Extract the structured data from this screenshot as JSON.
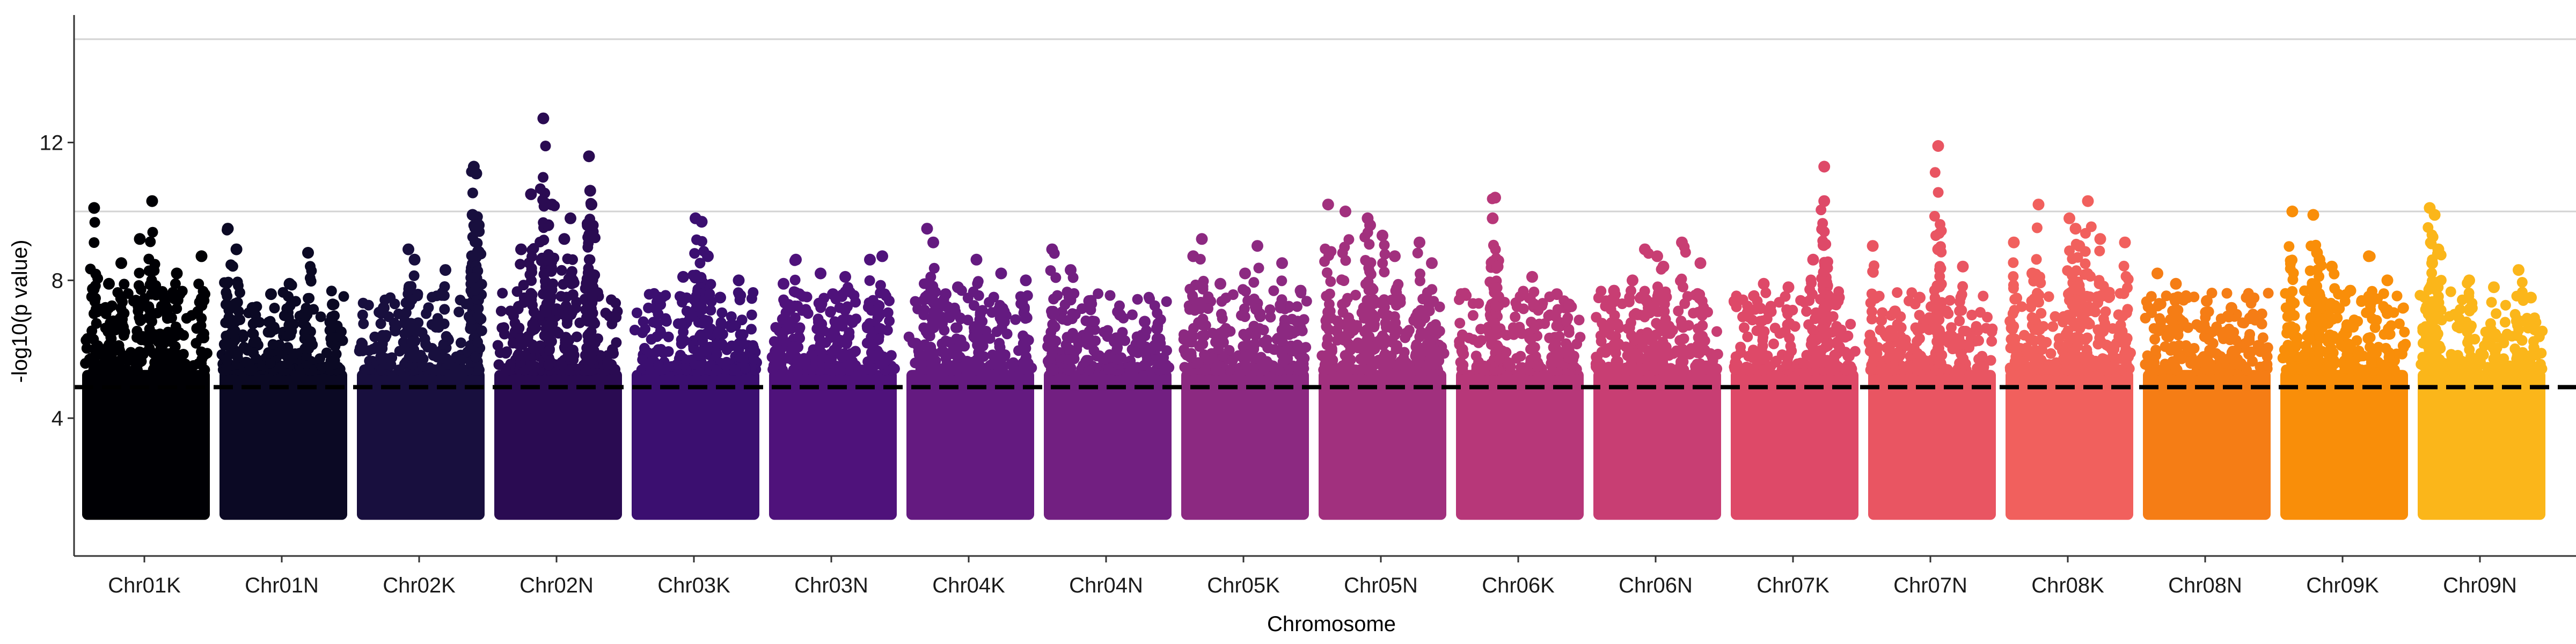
{
  "chart_data": {
    "type": "scatter",
    "title": "",
    "xlabel": "Chromosome",
    "ylabel": "-log10(p value)",
    "ylim": [
      0,
      15.7
    ],
    "y_ticks": [
      4,
      8,
      12
    ],
    "grid": "horizontal lines at y = 10 and y = 15",
    "reference_lines": {
      "grey_horizontal": [
        10,
        15
      ],
      "dashed_threshold": 4.9
    },
    "categories": [
      "Chr01K",
      "Chr01N",
      "Chr02K",
      "Chr02N",
      "Chr03K",
      "Chr03N",
      "Chr04K",
      "Chr04N",
      "Chr05K",
      "Chr05N",
      "Chr06K",
      "Chr06N",
      "Chr07K",
      "Chr07N",
      "Chr08K",
      "Chr08N",
      "Chr09K",
      "Chr09N"
    ],
    "colors": [
      "#000004",
      "#0b0924",
      "#180f3e",
      "#2a0b52",
      "#3b0f70",
      "#4f127b",
      "#641a80",
      "#721f81",
      "#8c2981",
      "#a1307e",
      "#b73779",
      "#c83e73",
      "#de4968",
      "#e95562",
      "#f1605d",
      "#f57d15",
      "#f98e09",
      "#fbb61a"
    ],
    "series": [
      {
        "name": "Chr01K",
        "peaks": [
          [
            0.08,
            10.1
          ],
          [
            0.55,
            10.3
          ],
          [
            0.45,
            9.2
          ],
          [
            0.3,
            8.5
          ],
          [
            0.95,
            8.7
          ],
          [
            0.75,
            8.2
          ],
          [
            0.2,
            7.9
          ],
          [
            0.65,
            7.5
          ]
        ]
      },
      {
        "name": "Chr01N",
        "peaks": [
          [
            0.05,
            9.5
          ],
          [
            0.12,
            8.9
          ],
          [
            0.4,
            7.6
          ],
          [
            0.7,
            8.8
          ],
          [
            0.55,
            7.9
          ],
          [
            0.9,
            7.3
          ],
          [
            0.25,
            7.2
          ]
        ]
      },
      {
        "name": "Chr02K",
        "peaks": [
          [
            0.4,
            8.9
          ],
          [
            0.45,
            8.6
          ],
          [
            0.93,
            11.3
          ],
          [
            0.95,
            11.1
          ],
          [
            0.92,
            9.9
          ],
          [
            0.97,
            9.6
          ],
          [
            0.7,
            8.3
          ],
          [
            0.2,
            7.2
          ]
        ]
      },
      {
        "name": "Chr02N",
        "peaks": [
          [
            0.38,
            12.7
          ],
          [
            0.75,
            11.6
          ],
          [
            0.76,
            10.6
          ],
          [
            0.28,
            10.5
          ],
          [
            0.45,
            10.2
          ],
          [
            0.6,
            9.8
          ],
          [
            0.77,
            10.2
          ],
          [
            0.42,
            9.6
          ],
          [
            0.2,
            8.9
          ],
          [
            0.55,
            9.2
          ]
        ]
      },
      {
        "name": "Chr03K",
        "peaks": [
          [
            0.5,
            9.8
          ],
          [
            0.55,
            9.7
          ],
          [
            0.6,
            8.7
          ],
          [
            0.4,
            8.1
          ],
          [
            0.85,
            8.0
          ],
          [
            0.2,
            7.5
          ],
          [
            0.7,
            7.5
          ]
        ]
      },
      {
        "name": "Chr03N",
        "peaks": [
          [
            0.2,
            8.6
          ],
          [
            0.4,
            8.2
          ],
          [
            0.6,
            8.1
          ],
          [
            0.8,
            8.6
          ],
          [
            0.9,
            8.7
          ],
          [
            0.1,
            7.9
          ],
          [
            0.5,
            7.6
          ]
        ]
      },
      {
        "name": "Chr04K",
        "peaks": [
          [
            0.15,
            9.5
          ],
          [
            0.2,
            9.1
          ],
          [
            0.55,
            8.6
          ],
          [
            0.75,
            8.2
          ],
          [
            0.95,
            8.0
          ],
          [
            0.4,
            7.8
          ],
          [
            0.3,
            7.6
          ]
        ]
      },
      {
        "name": "Chr04N",
        "peaks": [
          [
            0.05,
            8.9
          ],
          [
            0.2,
            8.3
          ],
          [
            0.35,
            7.4
          ],
          [
            0.6,
            7.0
          ],
          [
            0.8,
            6.8
          ],
          [
            0.9,
            6.6
          ]
        ]
      },
      {
        "name": "Chr05K",
        "peaks": [
          [
            0.15,
            9.2
          ],
          [
            0.08,
            8.7
          ],
          [
            0.5,
            8.2
          ],
          [
            0.6,
            9.0
          ],
          [
            0.8,
            8.5
          ],
          [
            0.3,
            7.9
          ],
          [
            0.95,
            7.7
          ]
        ]
      },
      {
        "name": "Chr05N",
        "peaks": [
          [
            0.06,
            10.2
          ],
          [
            0.2,
            10.0
          ],
          [
            0.38,
            9.8
          ],
          [
            0.4,
            9.6
          ],
          [
            0.5,
            9.3
          ],
          [
            0.6,
            8.7
          ],
          [
            0.8,
            9.1
          ],
          [
            0.9,
            8.5
          ]
        ]
      },
      {
        "name": "Chr06K",
        "peaks": [
          [
            0.3,
            10.4
          ],
          [
            0.28,
            9.8
          ],
          [
            0.32,
            8.4
          ],
          [
            0.6,
            8.1
          ],
          [
            0.8,
            7.6
          ],
          [
            0.9,
            7.3
          ]
        ]
      },
      {
        "name": "Chr06N",
        "peaks": [
          [
            0.4,
            8.9
          ],
          [
            0.5,
            8.7
          ],
          [
            0.55,
            8.4
          ],
          [
            0.7,
            9.1
          ],
          [
            0.85,
            8.5
          ],
          [
            0.3,
            8.0
          ],
          [
            0.15,
            7.7
          ]
        ]
      },
      {
        "name": "Chr07K",
        "peaks": [
          [
            0.74,
            11.3
          ],
          [
            0.74,
            10.3
          ],
          [
            0.25,
            7.9
          ],
          [
            0.45,
            7.8
          ],
          [
            0.65,
            8.6
          ],
          [
            0.85,
            7.4
          ]
        ]
      },
      {
        "name": "Chr07N",
        "peaks": [
          [
            0.02,
            9.0
          ],
          [
            0.55,
            11.9
          ],
          [
            0.55,
            8.9
          ],
          [
            0.75,
            8.4
          ],
          [
            0.4,
            7.5
          ],
          [
            0.2,
            7.1
          ]
        ]
      },
      {
        "name": "Chr08K",
        "peaks": [
          [
            0.25,
            10.2
          ],
          [
            0.65,
            10.3
          ],
          [
            0.5,
            9.8
          ],
          [
            0.55,
            9.5
          ],
          [
            0.58,
            9.0
          ],
          [
            0.75,
            9.2
          ],
          [
            0.95,
            9.1
          ],
          [
            0.05,
            9.1
          ],
          [
            0.2,
            8.2
          ]
        ]
      },
      {
        "name": "Chr08N",
        "peaks": [
          [
            0.1,
            8.2
          ],
          [
            0.25,
            7.9
          ],
          [
            0.5,
            7.4
          ],
          [
            0.7,
            7.2
          ],
          [
            0.85,
            6.9
          ]
        ]
      },
      {
        "name": "Chr09K",
        "peaks": [
          [
            0.08,
            10.0
          ],
          [
            0.25,
            9.9
          ],
          [
            0.28,
            8.8
          ],
          [
            0.3,
            8.6
          ],
          [
            0.4,
            8.4
          ],
          [
            0.7,
            8.7
          ],
          [
            0.85,
            8.0
          ],
          [
            0.55,
            7.7
          ]
        ]
      },
      {
        "name": "Chr09N",
        "peaks": [
          [
            0.08,
            10.1
          ],
          [
            0.12,
            9.9
          ],
          [
            0.15,
            8.9
          ],
          [
            0.1,
            8.5
          ],
          [
            0.4,
            8.0
          ],
          [
            0.6,
            7.8
          ],
          [
            0.8,
            8.3
          ],
          [
            0.9,
            7.5
          ]
        ]
      }
    ]
  }
}
